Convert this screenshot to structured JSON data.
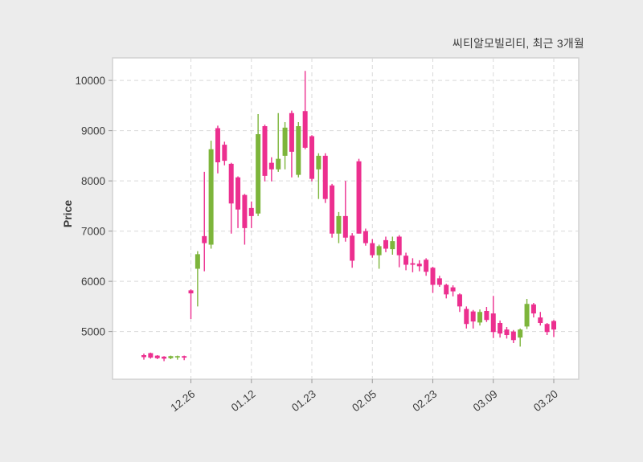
{
  "title": "씨티알모빌리티, 최근 3개월",
  "chart_data": {
    "type": "candlestick",
    "title": "씨티알모빌리티, 최근 3개월",
    "ylabel": "Price",
    "xlabel": "",
    "ylim": [
      4050,
      10450
    ],
    "yticks": [
      5000,
      6000,
      7000,
      8000,
      9000,
      10000
    ],
    "xtick_labels": [
      "12.26",
      "01.12",
      "01.23",
      "02.05",
      "02.23",
      "03.09",
      "03.20"
    ],
    "xtick_indices": [
      7,
      16,
      25,
      34,
      43,
      52,
      61
    ],
    "grid": "dashed-both",
    "legend_position": "none",
    "colors": {
      "up": "#7db53b",
      "down": "#ec2f8f",
      "grid": "#d9d9d9",
      "border": "#d2d2d2",
      "tick": "#9a9a9a",
      "text": "#3d3d3d",
      "plot_bg": "#ffffff",
      "fig_bg": "#ececec"
    },
    "candles_format": [
      "open",
      "high",
      "low",
      "close"
    ],
    "candles": [
      [
        4530,
        4560,
        4440,
        4490
      ],
      [
        4570,
        4580,
        4460,
        4480
      ],
      [
        4520,
        4530,
        4450,
        4470
      ],
      [
        4500,
        4510,
        4410,
        4460
      ],
      [
        4470,
        4520,
        4450,
        4510
      ],
      [
        4490,
        4520,
        4440,
        4510
      ],
      [
        4510,
        4520,
        4430,
        4480
      ],
      [
        5820,
        5840,
        5250,
        5760
      ],
      [
        6250,
        6600,
        5500,
        6540
      ],
      [
        6900,
        8180,
        6200,
        6760
      ],
      [
        6730,
        8800,
        6650,
        8630
      ],
      [
        9050,
        9100,
        8150,
        8370
      ],
      [
        8720,
        8780,
        8310,
        8400
      ],
      [
        8340,
        8360,
        6950,
        7550
      ],
      [
        8070,
        8090,
        7060,
        7430
      ],
      [
        7720,
        7740,
        6730,
        7060
      ],
      [
        7460,
        7590,
        7060,
        7300
      ],
      [
        7350,
        9330,
        7300,
        8930
      ],
      [
        9090,
        9120,
        7990,
        8100
      ],
      [
        8360,
        8470,
        7990,
        8230
      ],
      [
        8230,
        9350,
        8180,
        8440
      ],
      [
        8500,
        9170,
        8230,
        9060
      ],
      [
        9350,
        9400,
        8070,
        8580
      ],
      [
        8120,
        9170,
        8070,
        9090
      ],
      [
        9390,
        10190,
        8630,
        8660
      ],
      [
        8890,
        8910,
        7990,
        8040
      ],
      [
        8230,
        8550,
        7640,
        8500
      ],
      [
        8500,
        8550,
        7560,
        7640
      ],
      [
        7910,
        7940,
        6870,
        6950
      ],
      [
        6950,
        7380,
        6760,
        7300
      ],
      [
        7300,
        8000,
        6790,
        6870
      ],
      [
        6910,
        6960,
        6270,
        6410
      ],
      [
        8390,
        8440,
        6950,
        6950
      ],
      [
        7000,
        7050,
        6710,
        6760
      ],
      [
        6760,
        6840,
        6470,
        6520
      ],
      [
        6520,
        6730,
        6250,
        6700
      ],
      [
        6820,
        6890,
        6580,
        6650
      ],
      [
        6640,
        6890,
        6530,
        6800
      ],
      [
        6890,
        6920,
        6280,
        6520
      ],
      [
        6510,
        6570,
        6220,
        6330
      ],
      [
        6360,
        6460,
        6180,
        6330
      ],
      [
        6350,
        6420,
        6200,
        6300
      ],
      [
        6430,
        6460,
        6110,
        6190
      ],
      [
        6270,
        6290,
        5770,
        5930
      ],
      [
        6060,
        6110,
        5890,
        5930
      ],
      [
        5930,
        5950,
        5660,
        5740
      ],
      [
        5880,
        5920,
        5700,
        5800
      ],
      [
        5740,
        5760,
        5390,
        5500
      ],
      [
        5450,
        5500,
        5060,
        5150
      ],
      [
        5400,
        5430,
        5060,
        5200
      ],
      [
        5180,
        5440,
        5120,
        5390
      ],
      [
        5410,
        5490,
        5190,
        5230
      ],
      [
        5360,
        5710,
        4870,
        4990
      ],
      [
        5170,
        5220,
        4880,
        4960
      ],
      [
        5040,
        5090,
        4860,
        4930
      ],
      [
        5000,
        5030,
        4770,
        4830
      ],
      [
        4880,
        5060,
        4700,
        5040
      ],
      [
        5100,
        5650,
        5050,
        5550
      ],
      [
        5540,
        5570,
        5280,
        5360
      ],
      [
        5280,
        5390,
        5120,
        5170
      ],
      [
        5150,
        5170,
        4930,
        4990
      ],
      [
        5210,
        5230,
        4890,
        5040
      ]
    ]
  }
}
